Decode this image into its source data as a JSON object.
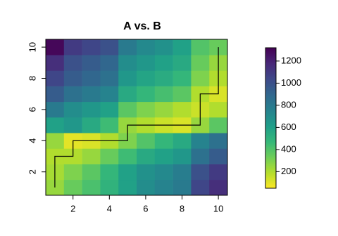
{
  "chart_data": {
    "type": "heatmap",
    "title": "A vs. B",
    "x": [
      1,
      2,
      3,
      4,
      5,
      6,
      7,
      8,
      9,
      10
    ],
    "y": [
      1,
      2,
      3,
      4,
      5,
      6,
      7,
      8,
      9,
      10
    ],
    "z": [
      [
        250,
        350,
        420,
        500,
        600,
        700,
        750,
        800,
        1050,
        1150
      ],
      [
        220,
        300,
        380,
        480,
        600,
        680,
        720,
        780,
        1000,
        1100
      ],
      [
        200,
        200,
        250,
        350,
        450,
        550,
        600,
        650,
        850,
        950
      ],
      [
        250,
        100,
        120,
        200,
        300,
        400,
        480,
        550,
        750,
        850
      ],
      [
        600,
        650,
        550,
        450,
        250,
        200,
        150,
        120,
        250,
        380
      ],
      [
        800,
        700,
        650,
        600,
        380,
        300,
        250,
        200,
        150,
        200
      ],
      [
        950,
        850,
        800,
        750,
        550,
        480,
        430,
        380,
        200,
        120
      ],
      [
        1050,
        950,
        900,
        850,
        650,
        580,
        540,
        480,
        300,
        200
      ],
      [
        1150,
        1000,
        950,
        900,
        700,
        650,
        600,
        550,
        350,
        250
      ],
      [
        1300,
        1100,
        1050,
        1000,
        800,
        720,
        680,
        600,
        400,
        350
      ]
    ],
    "path": {
      "x": [
        1,
        1,
        2,
        2,
        5,
        5,
        9,
        9,
        10,
        10
      ],
      "y": [
        1,
        3,
        3,
        4,
        4,
        5,
        5,
        7,
        7,
        10
      ],
      "color": "#000000"
    },
    "xlim": [
      0.5,
      10.5
    ],
    "ylim": [
      0.5,
      10.5
    ],
    "xticks": [
      2,
      4,
      6,
      8,
      10
    ],
    "yticks": [
      2,
      4,
      6,
      8,
      10
    ],
    "zlim": [
      50,
      1320
    ],
    "zticks": [
      200,
      400,
      600,
      800,
      1000,
      1200
    ],
    "colorscale": [
      "#fde725",
      "#b5de2b",
      "#6ece58",
      "#35b779",
      "#1f9e89",
      "#26828e",
      "#31688e",
      "#3e4989",
      "#482878",
      "#440154"
    ]
  }
}
